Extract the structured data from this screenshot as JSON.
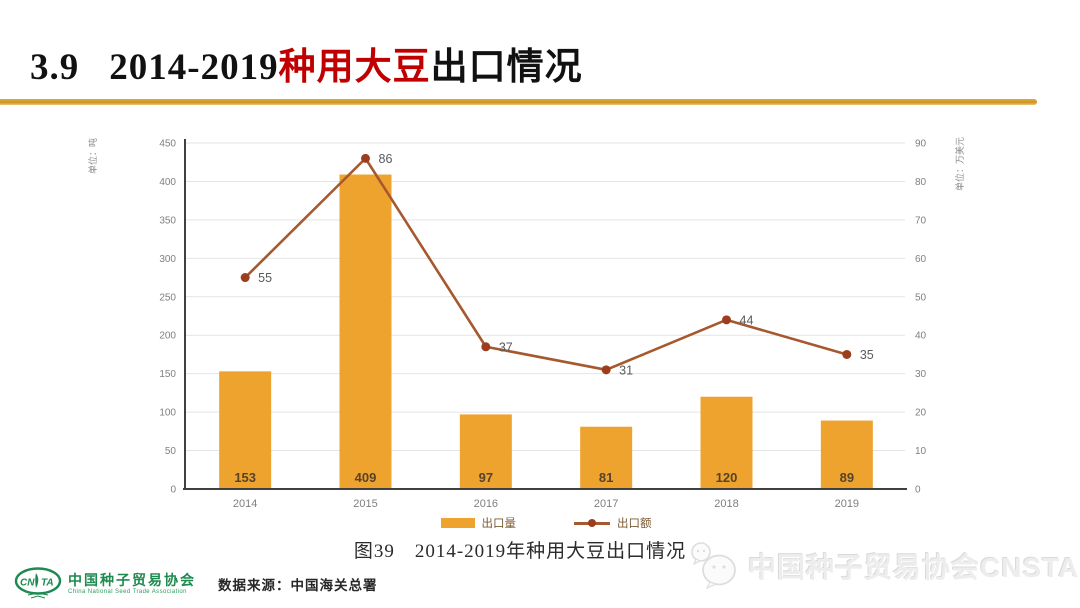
{
  "title": {
    "number": "3.9",
    "prefix": "2014-2019",
    "highlight": "种用大豆",
    "suffix": "出口情况"
  },
  "colors": {
    "bar": "#efa32f",
    "line": "#a6582e",
    "marker": "#9c3e1e",
    "bar_label": "#55432a",
    "line_label": "#595959",
    "tick_label": "#7f7f7f",
    "axis": "#404040",
    "grid": "#e4e4e4",
    "axis_title": "#8c8c8c",
    "title_red": "#c00000",
    "gold_divider": "#cd9322",
    "org_green": "#1e8a50",
    "watermark_gray": "#ededed"
  },
  "chart_data": {
    "type": "combo-bar-line",
    "categories": [
      "2014",
      "2015",
      "2016",
      "2017",
      "2018",
      "2019"
    ],
    "series": [
      {
        "name": "出口量",
        "type": "bar",
        "axis": "left",
        "values": [
          153,
          409,
          97,
          81,
          120,
          89
        ]
      },
      {
        "name": "出口额",
        "type": "line",
        "axis": "right",
        "values": [
          55,
          86,
          37,
          31,
          44,
          35
        ]
      }
    ],
    "left_axis": {
      "title": "单位：吨",
      "min": 0,
      "max": 450,
      "step": 50
    },
    "right_axis": {
      "title": "单位：万美元",
      "min": 0,
      "max": 90,
      "step": 10
    },
    "grid": true,
    "legend_position": "bottom"
  },
  "legend": [
    {
      "label": "出口量",
      "type": "bar"
    },
    {
      "label": "出口额",
      "type": "line"
    }
  ],
  "caption": "图39　2014-2019年种用大豆出口情况",
  "footer": {
    "logo_acronym_left": "CN",
    "logo_acronym_right": "TA",
    "org_cn": "中国种子贸易协会",
    "org_en": "China National Seed Trade Association",
    "source": "数据来源：中国海关总署"
  },
  "watermark": "中国种子贸易协会CNSTA"
}
